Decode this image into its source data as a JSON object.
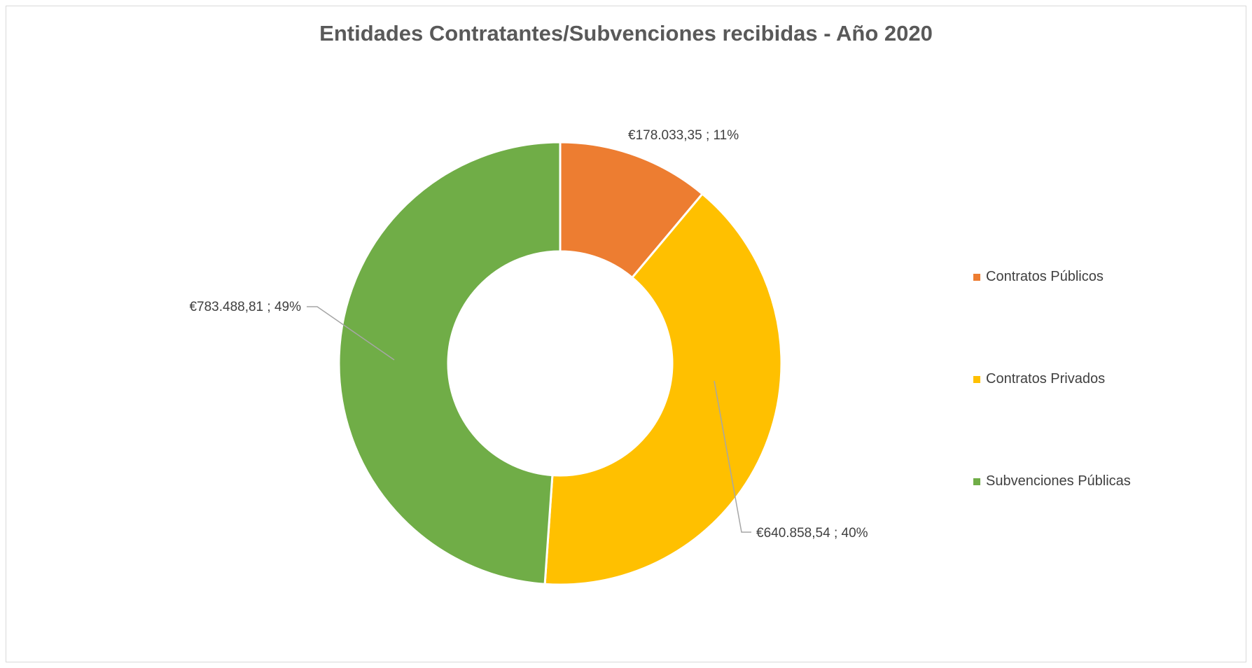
{
  "chart_data": {
    "type": "pie",
    "variant": "doughnut",
    "title": "Entidades Contratantes/Subvenciones recibidas - Año 2020",
    "categories": [
      "Contratos Públicos",
      "Contratos Privados",
      "Subvenciones Públicas"
    ],
    "values": [
      178033.35,
      640858.54,
      783488.81
    ],
    "percentages": [
      11,
      40,
      49
    ],
    "data_labels": [
      "€178.033,35 ; 11%",
      "€640.858,54 ; 40%",
      "€783.488,81 ; 49%"
    ],
    "colors": [
      "#ED7D31",
      "#FFC000",
      "#70AD47"
    ],
    "legend_position": "right",
    "start_angle_deg": 0,
    "direction": "clockwise"
  }
}
